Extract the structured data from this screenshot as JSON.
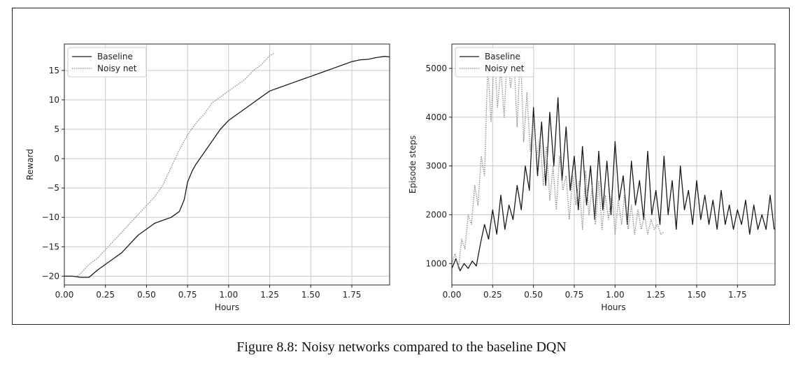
{
  "figure": {
    "caption": "Figure 8.8: Noisy networks compared to the baseline DQN"
  },
  "colors": {
    "baseline": "#1a1a1a",
    "noisy": "#8a8a8a",
    "grid": "#c8c8c8",
    "axis": "#222222"
  },
  "chart_data": [
    {
      "type": "line",
      "title": "",
      "xlabel": "Hours",
      "ylabel": "Reward",
      "xlim": [
        0,
        1.98
      ],
      "ylim": [
        -21.5,
        19.5
      ],
      "xticks": [
        0,
        0.25,
        0.5,
        0.75,
        1.0,
        1.25,
        1.5,
        1.75
      ],
      "xtick_labels": [
        "0.00",
        "0.25",
        "0.50",
        "0.75",
        "1.00",
        "1.25",
        "1.50",
        "1.75"
      ],
      "yticks": [
        -20,
        -15,
        -10,
        -5,
        0,
        5,
        10,
        15
      ],
      "ytick_labels": [
        "−20",
        "−15",
        "−10",
        "−5",
        "0",
        "5",
        "10",
        "15"
      ],
      "grid": true,
      "legend": "top-left",
      "series": [
        {
          "name": "Baseline",
          "style": "solid",
          "x": [
            0,
            0.05,
            0.1,
            0.15,
            0.2,
            0.25,
            0.3,
            0.35,
            0.4,
            0.45,
            0.5,
            0.55,
            0.6,
            0.65,
            0.7,
            0.73,
            0.75,
            0.78,
            0.8,
            0.85,
            0.9,
            0.95,
            1.0,
            1.05,
            1.1,
            1.15,
            1.2,
            1.25,
            1.3,
            1.35,
            1.4,
            1.45,
            1.5,
            1.55,
            1.6,
            1.65,
            1.7,
            1.75,
            1.8,
            1.85,
            1.9,
            1.95,
            1.98
          ],
          "y": [
            -20,
            -20,
            -20.2,
            -20.2,
            -19,
            -18,
            -17,
            -16,
            -14.5,
            -13,
            -12,
            -11,
            -10.5,
            -10,
            -9,
            -7,
            -4,
            -2,
            -1,
            1,
            3,
            5,
            6.5,
            7.5,
            8.5,
            9.5,
            10.5,
            11.5,
            12,
            12.5,
            13,
            13.5,
            14,
            14.5,
            15,
            15.5,
            16,
            16.5,
            16.8,
            16.9,
            17.2,
            17.4,
            17.3
          ]
        },
        {
          "name": "Noisy net",
          "style": "dotted",
          "x": [
            0.08,
            0.1,
            0.15,
            0.2,
            0.25,
            0.3,
            0.35,
            0.4,
            0.45,
            0.5,
            0.55,
            0.6,
            0.65,
            0.7,
            0.75,
            0.8,
            0.85,
            0.9,
            0.95,
            1.0,
            1.05,
            1.1,
            1.15,
            1.2,
            1.25,
            1.28
          ],
          "y": [
            -20,
            -19.5,
            -18,
            -17,
            -15.5,
            -14,
            -12.5,
            -11,
            -9.5,
            -8,
            -6.5,
            -4.5,
            -1.5,
            1.5,
            4,
            6,
            7.5,
            9.5,
            10.5,
            11.5,
            12.5,
            13.5,
            15,
            16,
            17.5,
            18
          ]
        }
      ]
    },
    {
      "type": "line",
      "title": "",
      "xlabel": "Hours",
      "ylabel": "Episode steps",
      "xlim": [
        0,
        1.98
      ],
      "ylim": [
        560,
        5500
      ],
      "xticks": [
        0,
        0.25,
        0.5,
        0.75,
        1.0,
        1.25,
        1.5,
        1.75
      ],
      "xtick_labels": [
        "0.00",
        "0.25",
        "0.50",
        "0.75",
        "1.00",
        "1.25",
        "1.50",
        "1.75"
      ],
      "yticks": [
        1000,
        2000,
        3000,
        4000,
        5000
      ],
      "ytick_labels": [
        "1000",
        "2000",
        "3000",
        "4000",
        "5000"
      ],
      "grid": true,
      "legend": "top-left",
      "series": [
        {
          "name": "Baseline",
          "style": "solid",
          "x": [
            0,
            0.025,
            0.05,
            0.075,
            0.1,
            0.125,
            0.15,
            0.175,
            0.2,
            0.225,
            0.25,
            0.275,
            0.3,
            0.325,
            0.35,
            0.375,
            0.4,
            0.425,
            0.45,
            0.475,
            0.5,
            0.525,
            0.55,
            0.575,
            0.6,
            0.625,
            0.65,
            0.675,
            0.7,
            0.725,
            0.75,
            0.775,
            0.8,
            0.825,
            0.85,
            0.875,
            0.9,
            0.925,
            0.95,
            0.975,
            1.0,
            1.025,
            1.05,
            1.075,
            1.1,
            1.125,
            1.15,
            1.175,
            1.2,
            1.225,
            1.25,
            1.275,
            1.3,
            1.325,
            1.35,
            1.375,
            1.4,
            1.425,
            1.45,
            1.475,
            1.5,
            1.525,
            1.55,
            1.575,
            1.6,
            1.625,
            1.65,
            1.675,
            1.7,
            1.725,
            1.75,
            1.775,
            1.8,
            1.825,
            1.85,
            1.875,
            1.9,
            1.925,
            1.95,
            1.975
          ],
          "y": [
            900,
            1100,
            850,
            1000,
            900,
            1050,
            950,
            1400,
            1800,
            1500,
            2100,
            1600,
            2400,
            1700,
            2200,
            1900,
            2600,
            2100,
            3000,
            2500,
            4200,
            2800,
            3900,
            2600,
            4100,
            3000,
            4400,
            2700,
            3800,
            2500,
            3200,
            2100,
            3400,
            2200,
            3000,
            1900,
            3300,
            2100,
            3100,
            2000,
            3500,
            2300,
            2800,
            1800,
            3100,
            2200,
            2700,
            1900,
            3300,
            2000,
            2500,
            1800,
            3200,
            2000,
            2700,
            1700,
            3000,
            2100,
            2500,
            1800,
            2700,
            1900,
            2400,
            1800,
            2300,
            1700,
            2500,
            1800,
            2200,
            1700,
            2100,
            1800,
            2300,
            1600,
            2200,
            1700,
            2000,
            1700,
            2400,
            1700
          ]
        },
        {
          "name": "Noisy net",
          "style": "dotted",
          "x": [
            0,
            0.02,
            0.04,
            0.06,
            0.08,
            0.1,
            0.12,
            0.14,
            0.16,
            0.18,
            0.2,
            0.22,
            0.24,
            0.26,
            0.28,
            0.3,
            0.32,
            0.34,
            0.36,
            0.38,
            0.4,
            0.42,
            0.44,
            0.46,
            0.48,
            0.5,
            0.52,
            0.54,
            0.56,
            0.58,
            0.6,
            0.62,
            0.64,
            0.66,
            0.68,
            0.7,
            0.72,
            0.74,
            0.76,
            0.78,
            0.8,
            0.82,
            0.84,
            0.86,
            0.88,
            0.9,
            0.92,
            0.94,
            0.96,
            0.98,
            1.0,
            1.02,
            1.04,
            1.06,
            1.08,
            1.1,
            1.12,
            1.14,
            1.16,
            1.18,
            1.2,
            1.22,
            1.24,
            1.26,
            1.28,
            1.3
          ],
          "y": [
            1000,
            1200,
            900,
            1500,
            1300,
            2000,
            1800,
            2600,
            2200,
            3200,
            2800,
            5100,
            3900,
            5300,
            4200,
            5000,
            4000,
            5300,
            4600,
            5200,
            3800,
            5400,
            3500,
            4500,
            3300,
            4000,
            3200,
            3600,
            2600,
            3400,
            2300,
            3000,
            2100,
            3200,
            2500,
            2800,
            1900,
            2800,
            2200,
            2700,
            1700,
            2900,
            2000,
            2600,
            1800,
            2700,
            1700,
            2400,
            1900,
            2500,
            1600,
            2300,
            1800,
            2500,
            1700,
            2200,
            1600,
            2100,
            1700,
            2000,
            1600,
            1900,
            1700,
            1800,
            1600,
            1650
          ]
        }
      ]
    }
  ]
}
